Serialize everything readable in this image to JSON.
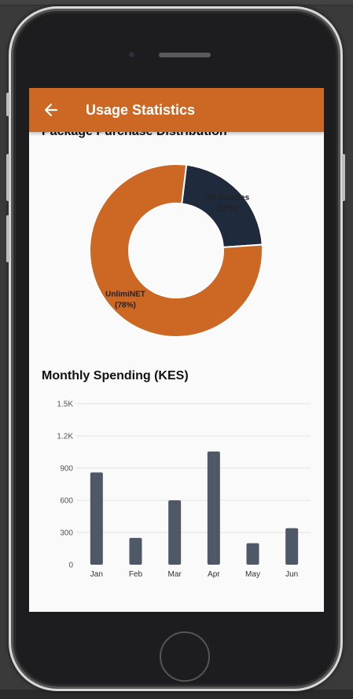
{
  "app": {
    "title": "Usage Statistics",
    "back_icon": "arrow-left-icon"
  },
  "sections": {
    "distribution_title": "Package Purchase Distribution",
    "spending_title": "Monthly Spending (KES)"
  },
  "colors": {
    "accent": "#cc6724",
    "dark_slice": "#1f2b3c",
    "bar": "#4e5866"
  },
  "chart_data": [
    {
      "type": "pie",
      "title": "Package Purchase Distribution",
      "slices": [
        {
          "label": "GB Bundles",
          "percent_label": "(22%)",
          "value": 22,
          "color": "#1f2b3c"
        },
        {
          "label": "UnlimiNET",
          "percent_label": "(78%)",
          "value": 78,
          "color": "#cc6724"
        }
      ]
    },
    {
      "type": "bar",
      "title": "Monthly Spending (KES)",
      "categories": [
        "Jan",
        "Feb",
        "Mar",
        "Apr",
        "May",
        "Jun"
      ],
      "values": [
        860,
        250,
        600,
        1055,
        200,
        340
      ],
      "yticks": [
        "0",
        "300",
        "600",
        "900",
        "1.2K",
        "1.5K"
      ],
      "ylim": [
        0,
        1500
      ],
      "grid": true
    }
  ]
}
